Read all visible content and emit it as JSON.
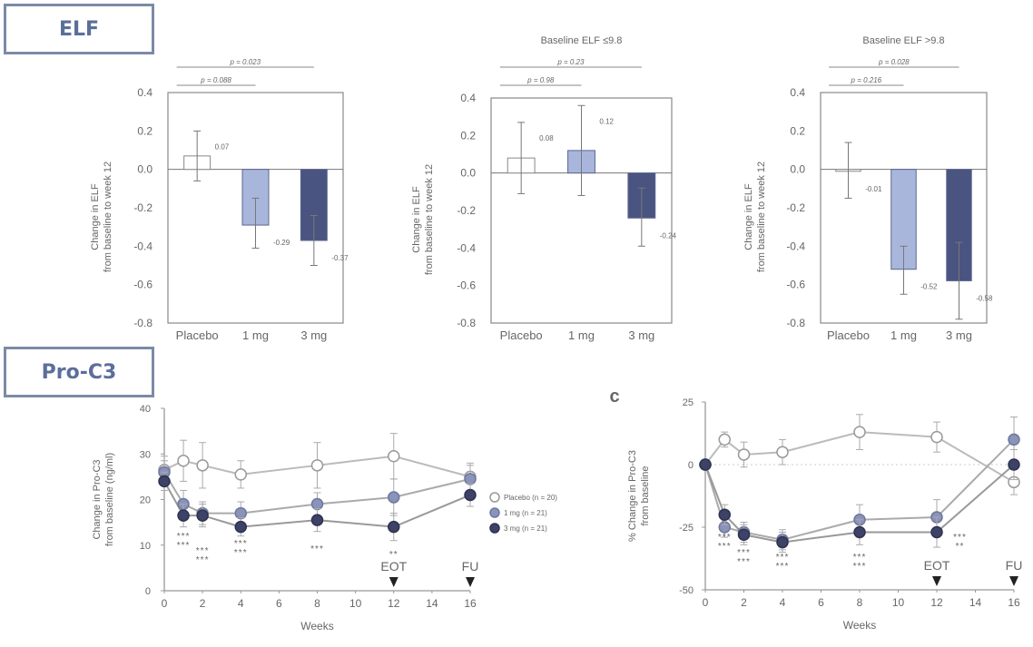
{
  "sections": {
    "elf": "ELF",
    "proc3": "Pro-C3"
  },
  "panel_c_label": "c",
  "colors": {
    "placebo": "#ffffff",
    "mg1": "#a9b6dc",
    "mg3": "#4a5480",
    "axis": "#888888",
    "box_border": "#7d8aa8",
    "box_text": "#5c6e9a"
  },
  "chart_data": [
    {
      "type": "bar",
      "title": "",
      "categories": [
        "Placebo",
        "1 mg",
        "3 mg"
      ],
      "values": [
        0.07,
        -0.29,
        -0.37
      ],
      "value_labels": [
        "0.07",
        "-0.29",
        "-0.37"
      ],
      "error_upper": [
        0.2,
        -0.15,
        -0.24
      ],
      "error_lower": [
        -0.06,
        -0.41,
        -0.5
      ],
      "ylabel": "Change in ELF from baseline to week 12",
      "ylim": [
        -0.8,
        0.4
      ],
      "yticks": [
        "0.4",
        "0.2",
        "0.0",
        "-0.2",
        "-0.4",
        "-0.6",
        "-0.8"
      ],
      "pvalues": [
        {
          "label": "p = 0.023",
          "from": 0,
          "to": 2
        },
        {
          "label": "p = 0.088",
          "from": 0,
          "to": 1
        }
      ]
    },
    {
      "type": "bar",
      "title": "Baseline ELF ≤9.8",
      "categories": [
        "Placebo",
        "1 mg",
        "3 mg"
      ],
      "values": [
        0.08,
        0.12,
        -0.24
      ],
      "value_labels": [
        "0.08",
        "0.12",
        "-0.24"
      ],
      "error_upper": [
        0.27,
        0.36,
        -0.08
      ],
      "error_lower": [
        -0.11,
        -0.12,
        -0.39
      ],
      "ylabel": "Change in ELF from baseline to week 12",
      "ylim": [
        -0.8,
        0.4
      ],
      "yticks": [
        "0.4",
        "0.2",
        "0.0",
        "-0.2",
        "-0.4",
        "-0.6",
        "-0.8"
      ],
      "pvalues": [
        {
          "label": "p = 0.23",
          "from": 0,
          "to": 2
        },
        {
          "label": "p = 0.98",
          "from": 0,
          "to": 1
        }
      ]
    },
    {
      "type": "bar",
      "title": "Baseline ELF >9.8",
      "categories": [
        "Placebo",
        "1 mg",
        "3 mg"
      ],
      "values": [
        -0.01,
        -0.52,
        -0.58
      ],
      "value_labels": [
        "-0.01",
        "-0.52",
        "-0.58"
      ],
      "error_upper": [
        0.14,
        -0.4,
        -0.38
      ],
      "error_lower": [
        -0.15,
        -0.65,
        -0.78
      ],
      "ylabel": "Change in ELF from baseline to week 12",
      "ylim": [
        -0.8,
        0.4
      ],
      "yticks": [
        "0.4",
        "0.2",
        "0.0",
        "-0.2",
        "-0.4",
        "-0.6",
        "-0.8"
      ],
      "pvalues": [
        {
          "label": "p = 0.028",
          "from": 0,
          "to": 2
        },
        {
          "label": "p = 0.216",
          "from": 0,
          "to": 1
        }
      ]
    },
    {
      "type": "line",
      "title": "",
      "xlabel": "Weeks",
      "ylabel": "Change in Pro-C3 from baseline (ng/ml)",
      "xlim": [
        0,
        16
      ],
      "ylim": [
        0,
        40
      ],
      "xticks": [
        "0",
        "2",
        "4",
        "6",
        "8",
        "10",
        "12",
        "14",
        "16"
      ],
      "yticks": [
        "0",
        "10",
        "20",
        "30",
        "40"
      ],
      "x": [
        0,
        1,
        2,
        4,
        8,
        12,
        16
      ],
      "series": [
        {
          "name": "Placebo (n = 20)",
          "marker": "open",
          "values": [
            26.5,
            28.5,
            27.5,
            25.5,
            27.5,
            29.5,
            25
          ],
          "err": [
            3,
            4.5,
            5,
            3,
            5,
            5,
            3
          ]
        },
        {
          "name": "1 mg (n = 21)",
          "marker": "light",
          "values": [
            26,
            19,
            17,
            17,
            19,
            20.5,
            24.5
          ],
          "err": [
            2.5,
            3,
            2.5,
            2.5,
            2.5,
            4,
            3
          ]
        },
        {
          "name": "3 mg (n = 21)",
          "marker": "dark",
          "values": [
            24,
            16.5,
            16.5,
            14,
            15.5,
            14,
            21
          ],
          "err": [
            2,
            2.5,
            2.5,
            2,
            2.5,
            3,
            2.5
          ]
        }
      ],
      "significance": [
        {
          "x": 1,
          "labels": [
            "***",
            "***"
          ]
        },
        {
          "x": 2,
          "labels": [
            "***",
            "***"
          ]
        },
        {
          "x": 4,
          "labels": [
            "***",
            "***"
          ]
        },
        {
          "x": 8,
          "labels": [
            "***"
          ]
        },
        {
          "x": 12,
          "labels": [
            "**"
          ]
        }
      ],
      "annotations": [
        "EOT",
        "FU"
      ],
      "annotation_x": [
        12,
        16
      ],
      "legend_position": "right"
    },
    {
      "type": "line",
      "title": "",
      "xlabel": "Weeks",
      "ylabel": "% Change in Pro-C3 from baseline",
      "xlim": [
        0,
        16
      ],
      "ylim": [
        -50,
        25
      ],
      "xticks": [
        "0",
        "2",
        "4",
        "6",
        "8",
        "10",
        "12",
        "14",
        "16"
      ],
      "yticks": [
        "25",
        "0",
        "-25",
        "-50"
      ],
      "x": [
        0,
        1,
        2,
        4,
        8,
        12,
        16
      ],
      "series": [
        {
          "name": "Placebo",
          "marker": "open",
          "values": [
            0,
            10,
            4,
            5,
            13,
            11,
            -7
          ],
          "err": [
            0,
            3,
            5,
            5,
            7,
            6,
            5
          ]
        },
        {
          "name": "1 mg",
          "marker": "light",
          "values": [
            0,
            -25,
            -27,
            -30,
            -22,
            -21,
            10
          ],
          "err": [
            0,
            4,
            4,
            4,
            6,
            7,
            9
          ]
        },
        {
          "name": "3 mg",
          "marker": "dark",
          "values": [
            0,
            -20,
            -28,
            -31,
            -27,
            -27,
            0
          ],
          "err": [
            0,
            4,
            4,
            4,
            5,
            6,
            6
          ]
        }
      ],
      "significance": [
        {
          "x": 1,
          "labels": [
            "***",
            "***"
          ]
        },
        {
          "x": 2,
          "labels": [
            "***",
            "***"
          ]
        },
        {
          "x": 4,
          "labels": [
            "***",
            "***"
          ]
        },
        {
          "x": 8,
          "labels": [
            "***",
            "***"
          ]
        },
        {
          "x": 13.2,
          "labels": [
            "***",
            "**"
          ]
        }
      ],
      "annotations": [
        "EOT",
        "FU"
      ],
      "annotation_x": [
        12,
        16
      ],
      "legend_position": "none"
    }
  ]
}
